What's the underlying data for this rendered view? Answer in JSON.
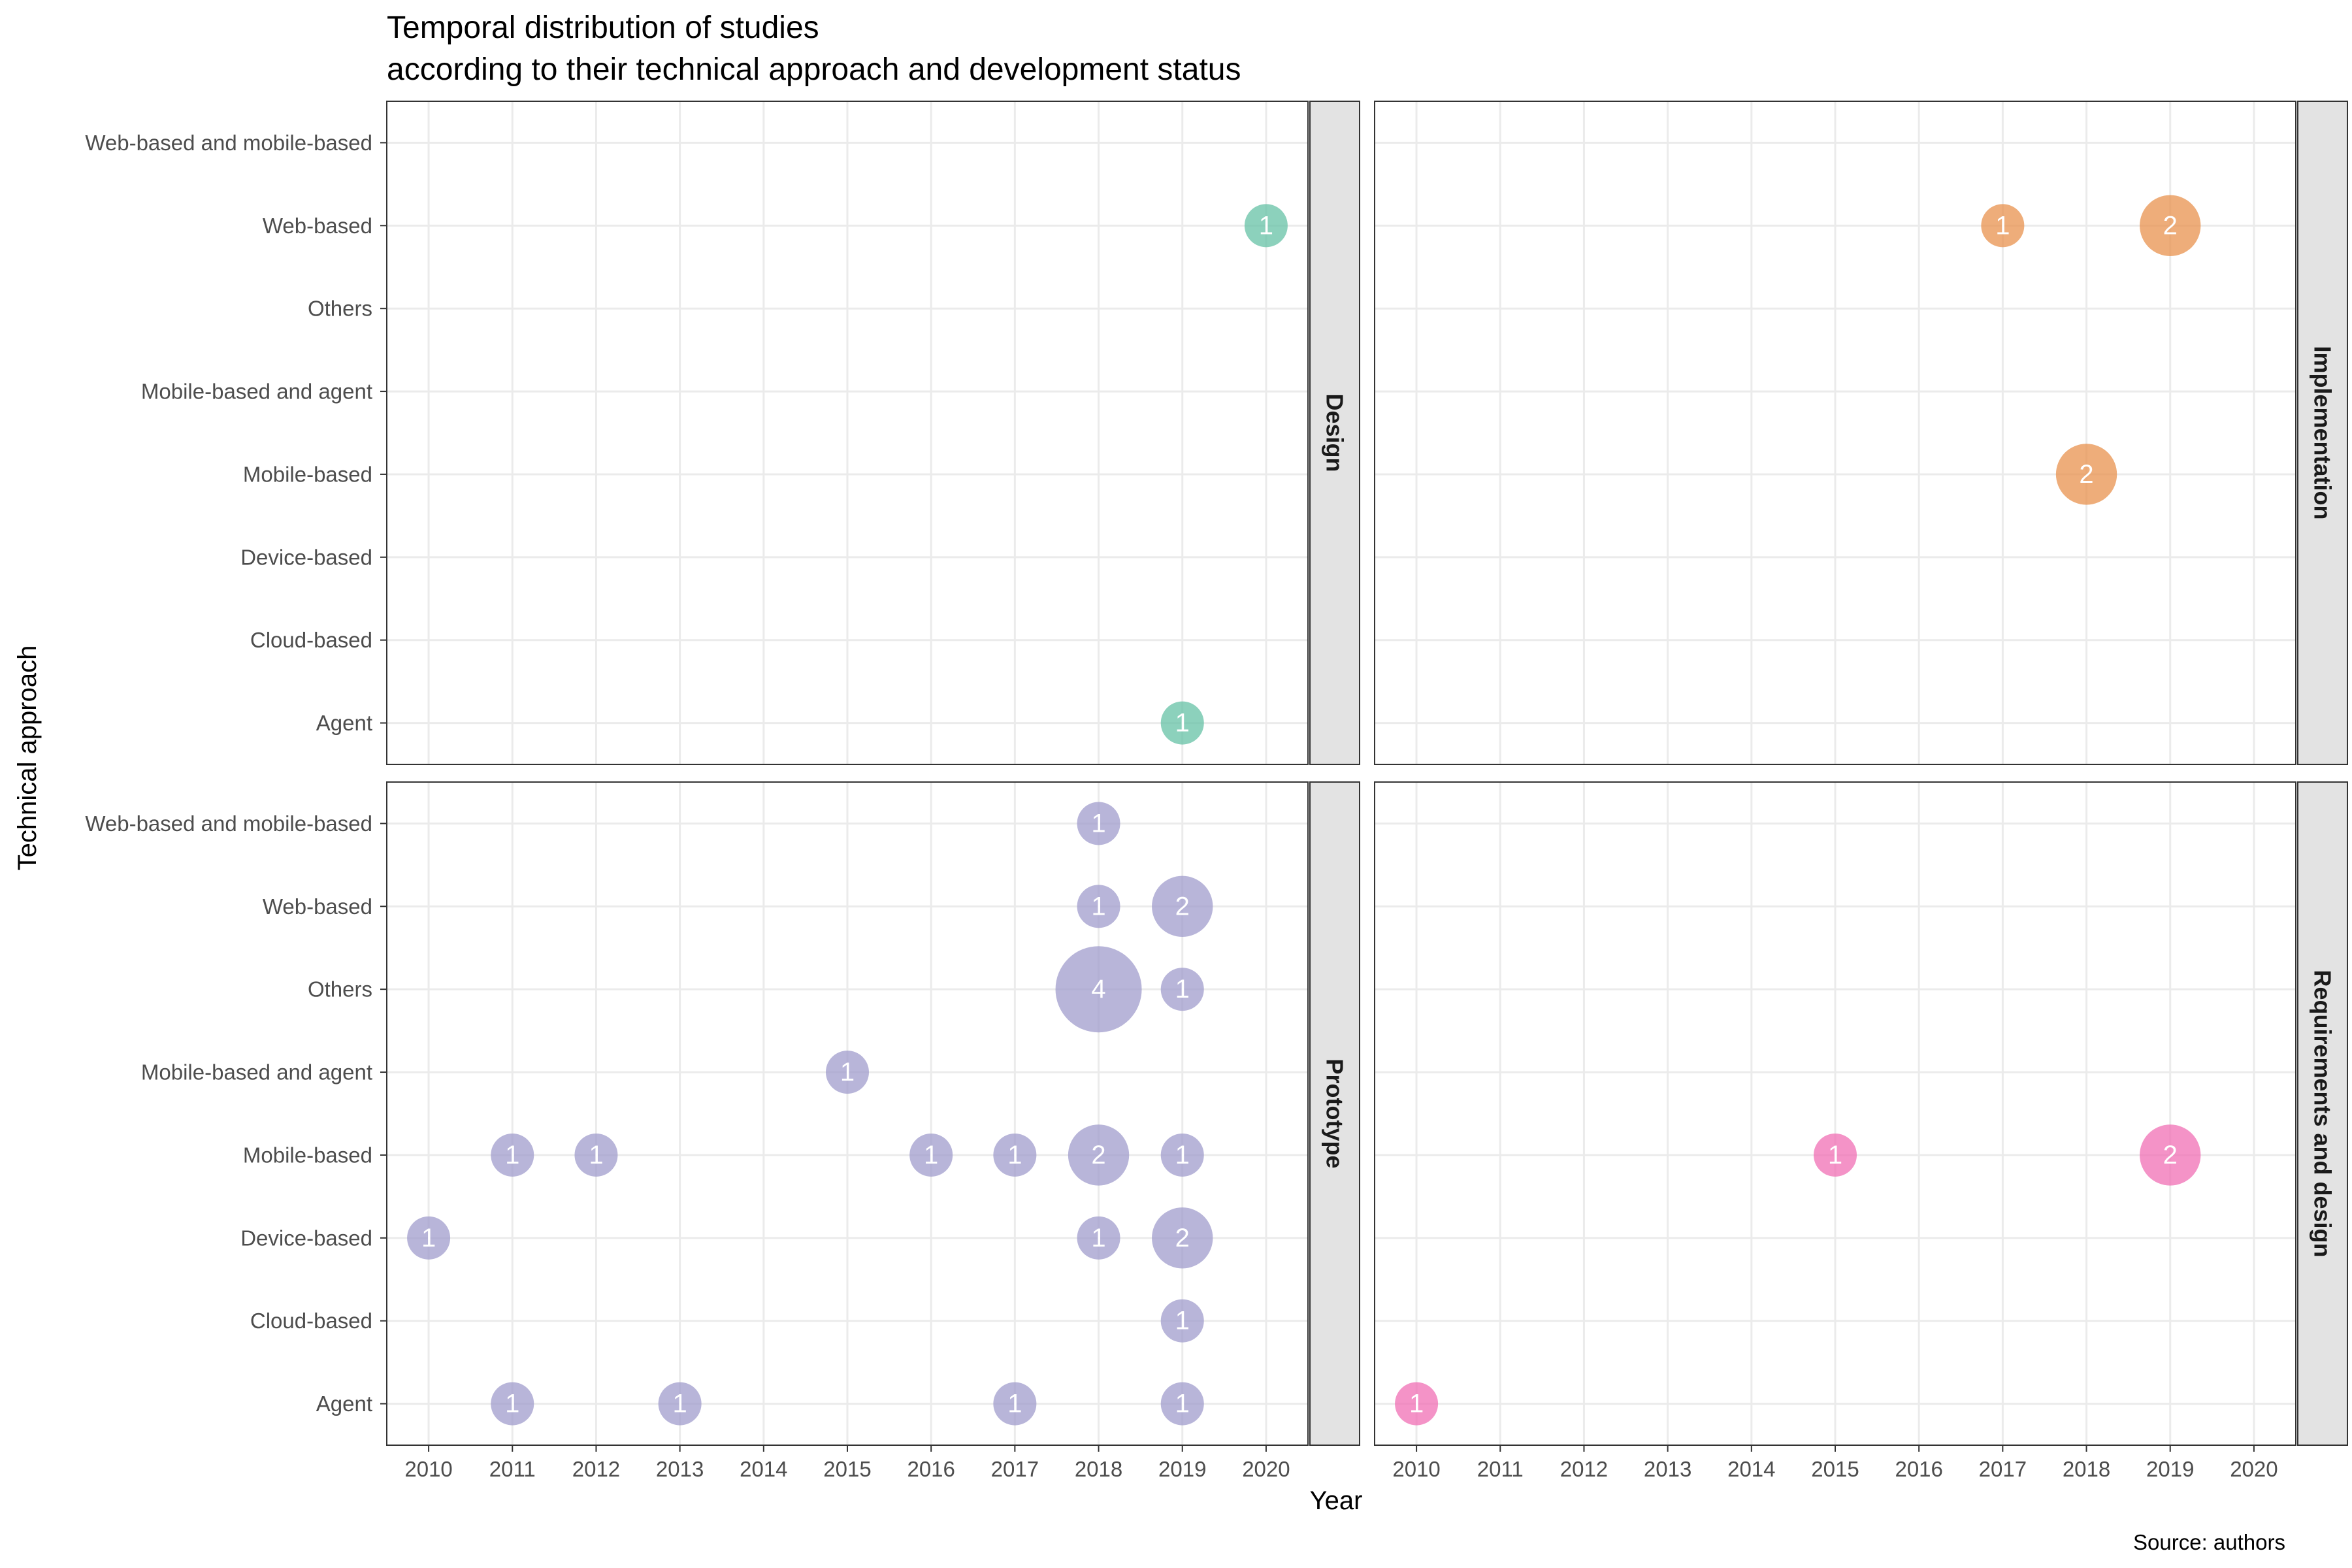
{
  "chart_data": {
    "type": "scatter",
    "title_lines": [
      "Temporal distribution of studies",
      "according to their technical approach and development status"
    ],
    "xlabel": "Year",
    "ylabel": "Technical approach",
    "caption": "Source: authors",
    "x_ticks": [
      2010,
      2011,
      2012,
      2013,
      2014,
      2015,
      2016,
      2017,
      2018,
      2019,
      2020
    ],
    "xlim": [
      2009.5,
      2020.5
    ],
    "y_categories": [
      "Agent",
      "Cloud-based",
      "Device-based",
      "Mobile-based",
      "Mobile-based and agent",
      "Others",
      "Web-based",
      "Web-based and mobile-based"
    ],
    "grid": true,
    "legend": "none",
    "size_encodes": "count",
    "panels": [
      {
        "name": "Design",
        "color": "#66c2a5",
        "points": [
          {
            "x": 2020,
            "y": "Web-based",
            "count": 1
          },
          {
            "x": 2019,
            "y": "Agent",
            "count": 1
          }
        ]
      },
      {
        "name": "Implementation",
        "color": "#e8914d",
        "points": [
          {
            "x": 2017,
            "y": "Web-based",
            "count": 1
          },
          {
            "x": 2019,
            "y": "Web-based",
            "count": 2
          },
          {
            "x": 2018,
            "y": "Mobile-based",
            "count": 2
          }
        ]
      },
      {
        "name": "Prototype",
        "color": "#a09ccc",
        "points": [
          {
            "x": 2018,
            "y": "Web-based and mobile-based",
            "count": 1
          },
          {
            "x": 2018,
            "y": "Web-based",
            "count": 1
          },
          {
            "x": 2019,
            "y": "Web-based",
            "count": 2
          },
          {
            "x": 2018,
            "y": "Others",
            "count": 4
          },
          {
            "x": 2019,
            "y": "Others",
            "count": 1
          },
          {
            "x": 2015,
            "y": "Mobile-based and agent",
            "count": 1
          },
          {
            "x": 2011,
            "y": "Mobile-based",
            "count": 1
          },
          {
            "x": 2012,
            "y": "Mobile-based",
            "count": 1
          },
          {
            "x": 2016,
            "y": "Mobile-based",
            "count": 1
          },
          {
            "x": 2017,
            "y": "Mobile-based",
            "count": 1
          },
          {
            "x": 2018,
            "y": "Mobile-based",
            "count": 2
          },
          {
            "x": 2019,
            "y": "Mobile-based",
            "count": 1
          },
          {
            "x": 2010,
            "y": "Device-based",
            "count": 1
          },
          {
            "x": 2018,
            "y": "Device-based",
            "count": 1
          },
          {
            "x": 2019,
            "y": "Device-based",
            "count": 2
          },
          {
            "x": 2019,
            "y": "Cloud-based",
            "count": 1
          },
          {
            "x": 2011,
            "y": "Agent",
            "count": 1
          },
          {
            "x": 2013,
            "y": "Agent",
            "count": 1
          },
          {
            "x": 2017,
            "y": "Agent",
            "count": 1
          },
          {
            "x": 2019,
            "y": "Agent",
            "count": 1
          }
        ]
      },
      {
        "name": "Requirements and design",
        "color": "#f06fb4",
        "points": [
          {
            "x": 2015,
            "y": "Mobile-based",
            "count": 1
          },
          {
            "x": 2019,
            "y": "Mobile-based",
            "count": 2
          },
          {
            "x": 2010,
            "y": "Agent",
            "count": 1
          }
        ]
      }
    ]
  }
}
